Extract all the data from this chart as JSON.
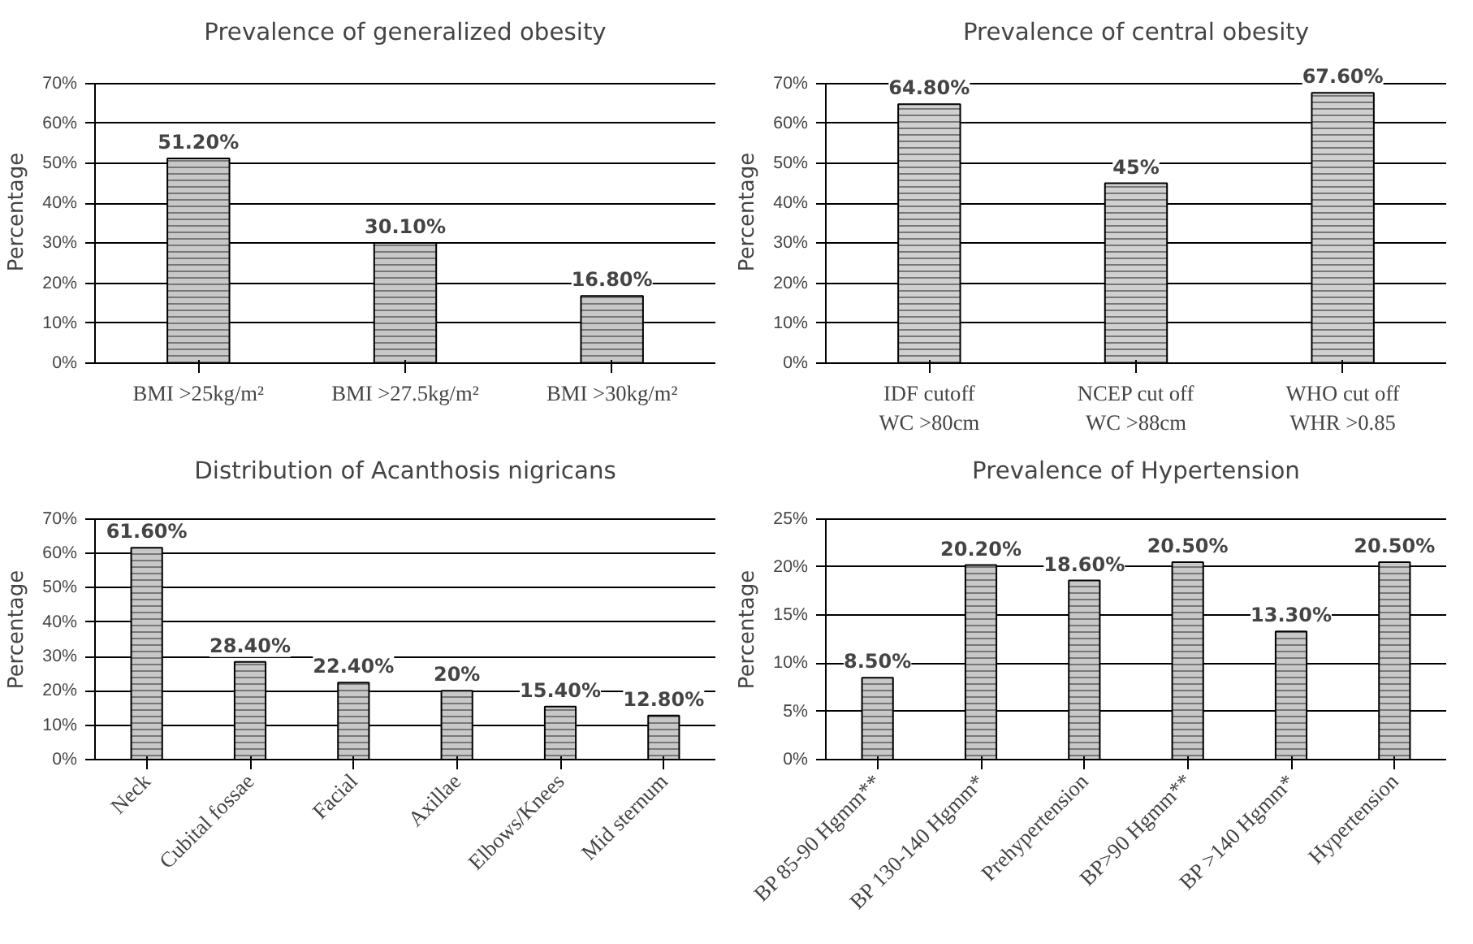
{
  "chart_data": [
    {
      "type": "bar",
      "title": "Prevalence of generalized obesity",
      "ylabel": "Percentage",
      "categories": [
        "BMI >25kg/m²",
        "BMI >27.5kg/m²",
        "BMI >30kg/m²"
      ],
      "values": [
        51.2,
        30.1,
        16.8
      ],
      "value_labels": [
        "51.20%",
        "30.10%",
        "16.80%"
      ],
      "color": "#c8c8c8",
      "ylim": [
        0,
        70
      ],
      "yticks": [
        {
          "value": 0,
          "label": "0%"
        },
        {
          "value": 10,
          "label": "10%"
        },
        {
          "value": 20,
          "label": "20%"
        },
        {
          "value": 30,
          "label": "30%"
        },
        {
          "value": 40,
          "label": "40%"
        },
        {
          "value": 50,
          "label": "50%"
        },
        {
          "value": 60,
          "label": "60%"
        },
        {
          "value": 70,
          "label": "70%"
        }
      ],
      "grid": "y"
    },
    {
      "type": "bar",
      "title": "Prevalence of central obesity",
      "ylabel": "Percentage",
      "categories": [
        "IDF cutoff\nWC >80cm",
        "NCEP cut off\nWC >88cm",
        "WHO cut off\nWHR >0.85"
      ],
      "values": [
        64.8,
        45,
        67.6
      ],
      "value_labels": [
        "64.80%",
        "45%",
        "67.60%"
      ],
      "color": "#d0d0d0",
      "ylim": [
        0,
        70
      ],
      "yticks": [
        {
          "value": 0,
          "label": "0%"
        },
        {
          "value": 10,
          "label": "10%"
        },
        {
          "value": 20,
          "label": "20%"
        },
        {
          "value": 30,
          "label": "30%"
        },
        {
          "value": 40,
          "label": "40%"
        },
        {
          "value": 50,
          "label": "50%"
        },
        {
          "value": 60,
          "label": "60%"
        },
        {
          "value": 70,
          "label": "70%"
        }
      ],
      "grid": "y"
    },
    {
      "type": "bar",
      "title": "Distribution of Acanthosis nigricans",
      "ylabel": "Percentage",
      "categories": [
        "Neck",
        "Cubital fossae",
        "Facial",
        "Axillae",
        "Elbows/Knees",
        "Mid sternum"
      ],
      "values": [
        61.6,
        28.4,
        22.4,
        20,
        15.4,
        12.8
      ],
      "value_labels": [
        "61.60%",
        "28.40%",
        "22.40%",
        "20%",
        "15.40%",
        "12.80%"
      ],
      "color": "#c8c8c8",
      "ylim": [
        0,
        70
      ],
      "yticks": [
        {
          "value": 0,
          "label": "0%"
        },
        {
          "value": 10,
          "label": "10%"
        },
        {
          "value": 20,
          "label": "20%"
        },
        {
          "value": 30,
          "label": "30%"
        },
        {
          "value": 40,
          "label": "40%"
        },
        {
          "value": 50,
          "label": "50%"
        },
        {
          "value": 60,
          "label": "60%"
        },
        {
          "value": 70,
          "label": "70%"
        }
      ],
      "grid": "y"
    },
    {
      "type": "bar",
      "title": "Prevalence of Hypertension",
      "ylabel": "Percentage",
      "categories": [
        "BP 85-90 Hgmm**",
        "BP 130-140 Hgmm*",
        "Prehypertension",
        "BP>90 Hgmm**",
        "BP >140 Hgmm*",
        "Hypertension"
      ],
      "values": [
        8.5,
        20.2,
        18.6,
        20.5,
        13.3,
        20.5
      ],
      "value_labels": [
        "8.50%",
        "20.20%",
        "18.60%",
        "20.50%",
        "13.30%",
        "20.50%"
      ],
      "color": "#c8c8c8",
      "ylim": [
        0,
        25
      ],
      "yticks": [
        {
          "value": 0,
          "label": "0%"
        },
        {
          "value": 5,
          "label": "5%"
        },
        {
          "value": 10,
          "label": "10%"
        },
        {
          "value": 15,
          "label": "15%"
        },
        {
          "value": 20,
          "label": "20%"
        },
        {
          "value": 25,
          "label": "25%"
        }
      ],
      "grid": "y"
    }
  ]
}
